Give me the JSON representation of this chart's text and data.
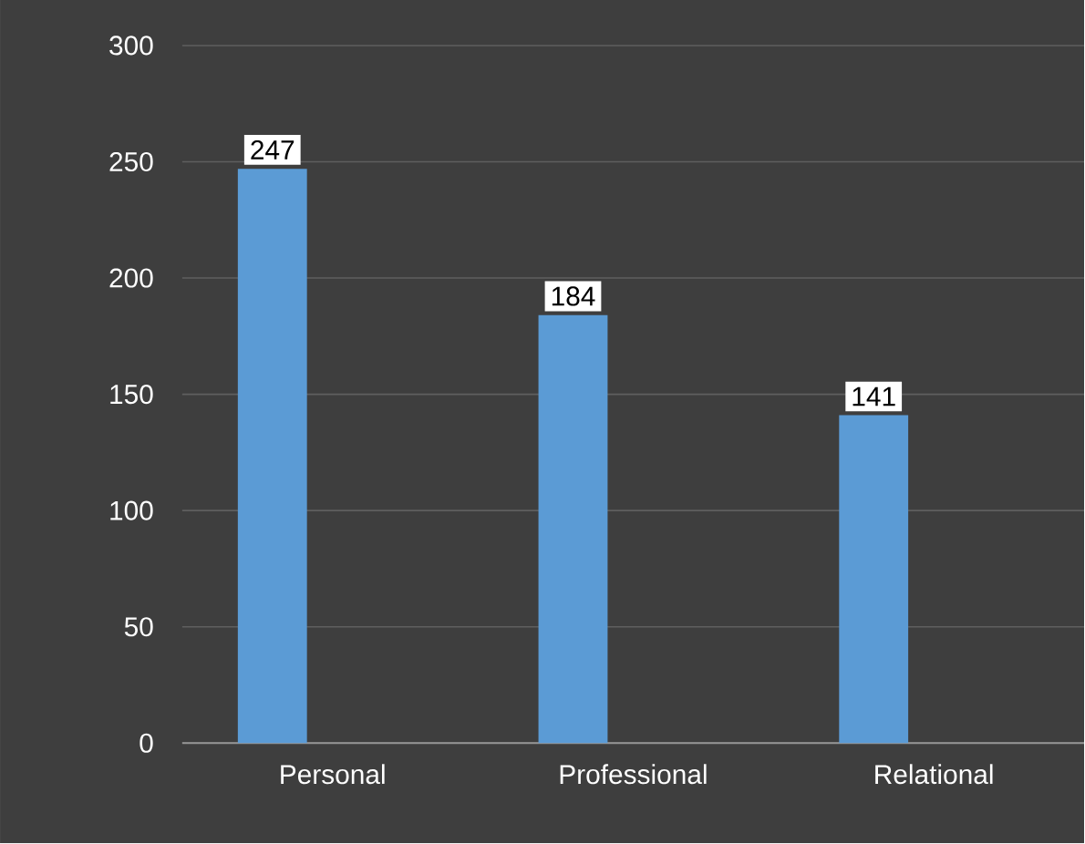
{
  "chart_data": {
    "type": "bar",
    "categories": [
      "Personal",
      "Professional",
      "Relational"
    ],
    "values": [
      247,
      184,
      141
    ],
    "color": "#5b9bd5",
    "ylim": [
      0,
      300
    ],
    "yticks": [
      0,
      50,
      100,
      150,
      200,
      250,
      300
    ],
    "grid": "y",
    "data_labels": true
  }
}
